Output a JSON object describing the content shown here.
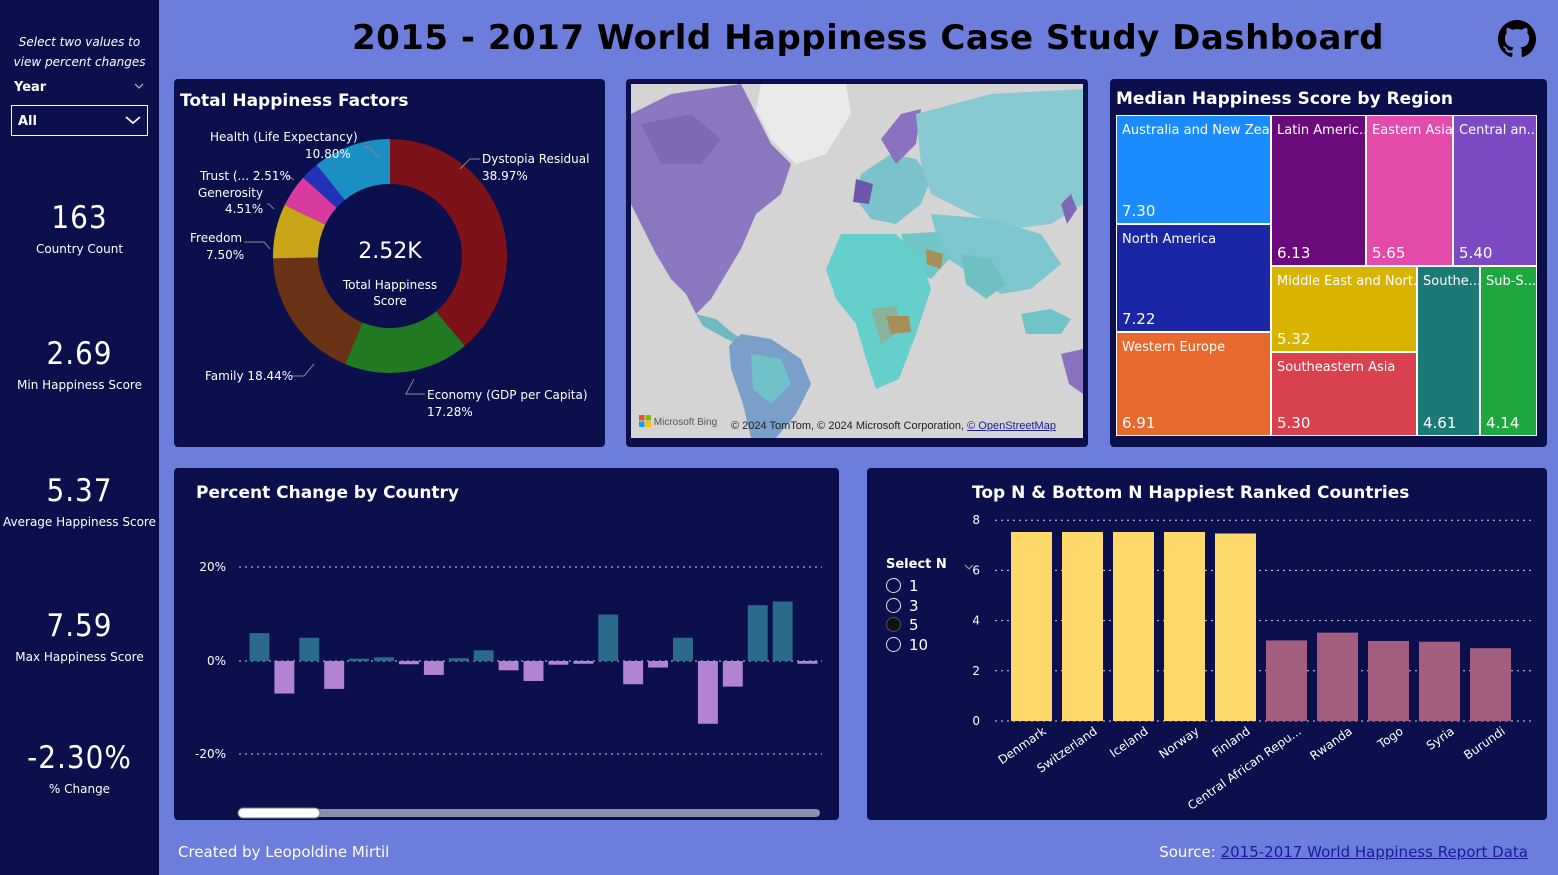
{
  "title": "2015 - 2017 World Happiness Case Study Dashboard",
  "github_icon": "github-icon",
  "sidebar": {
    "note": "Select two values to view percent changes",
    "year_label": "Year",
    "year_value": "All",
    "kpis": [
      {
        "value": "163",
        "label": "Country Count"
      },
      {
        "value": "2.69",
        "label": "Min Happiness Score"
      },
      {
        "value": "5.37",
        "label": "Average Happiness Score"
      },
      {
        "value": "7.59",
        "label": "Max Happiness Score"
      },
      {
        "value": "-2.30%",
        "label": "% Change"
      }
    ]
  },
  "factors": {
    "title": "Total Happiness Factors",
    "center_value": "2.52K",
    "center_label": "Total Happiness Score",
    "labels": {
      "health": "Health (Life Expectancy)",
      "health_pct": "10.80%",
      "trust": "Trust (... 2.51%",
      "generosity": "Generosity",
      "generosity_pct": "4.51%",
      "freedom": "Freedom",
      "freedom_pct": "7.50%",
      "family": "Family 18.44%",
      "dystopia": "Dystopia Residual",
      "dystopia_pct": "38.97%",
      "economy": "Economy (GDP per Capita)",
      "economy_pct": "17.28%"
    }
  },
  "map": {
    "attribution": "© 2024 TomTom, © 2024 Microsoft Corporation,",
    "osm_link": "© OpenStreetMap",
    "logo": "Microsoft Bing"
  },
  "treemap": {
    "title": "Median Happiness Score by Region",
    "tiles": [
      {
        "name": "Australia and New Zeal...",
        "value": "7.30",
        "color": "#1a8cff"
      },
      {
        "name": "North America",
        "value": "7.22",
        "color": "#1a26a6"
      },
      {
        "name": "Western Europe",
        "value": "6.91",
        "color": "#e8692e"
      },
      {
        "name": "Latin Americ...",
        "value": "6.13",
        "color": "#6b0a7a"
      },
      {
        "name": "Eastern Asia",
        "value": "5.65",
        "color": "#e34aaa"
      },
      {
        "name": "Central an...",
        "value": "5.40",
        "color": "#7c4bc4"
      },
      {
        "name": "Middle East and Nort...",
        "value": "5.32",
        "color": "#d8b400"
      },
      {
        "name": "Southeastern Asia",
        "value": "5.30",
        "color": "#d9414f"
      },
      {
        "name": "Southe...",
        "value": "4.61",
        "color": "#1c7a76"
      },
      {
        "name": "Sub-S...",
        "value": "4.14",
        "color": "#1fa73f"
      }
    ]
  },
  "footer": {
    "created_by": "Created by Leopoldine Mirtil",
    "source_label": "Source:",
    "source_link": "2015-2017 World Happiness Report Data"
  },
  "topn": {
    "title": "Top N & Bottom N Happiest Ranked Countries",
    "select_label": "Select N",
    "options": [
      "1",
      "3",
      "5",
      "10"
    ],
    "selected": "5"
  },
  "chart_data": [
    {
      "type": "donut",
      "title": "Total Happiness Factors",
      "categories": [
        "Dystopia Residual",
        "Economy (GDP per Capita)",
        "Family",
        "Freedom",
        "Generosity",
        "Trust",
        "Health (Life Expectancy)"
      ],
      "values": [
        38.97,
        17.28,
        18.44,
        7.5,
        4.51,
        2.51,
        10.8
      ],
      "colors": [
        "#7d1218",
        "#217a21",
        "#6b3316",
        "#c9a618",
        "#d83aa0",
        "#2330b8",
        "#1b8fc2"
      ]
    },
    {
      "type": "bar",
      "title": "Percent Change by Country",
      "ylim": [
        -20,
        20
      ],
      "yticks": [
        "20%",
        "0%",
        "-20%"
      ],
      "values": [
        6,
        -7,
        5,
        -6,
        0.5,
        0.8,
        -0.7,
        -3,
        0.6,
        2.3,
        -2,
        -4.3,
        -0.8,
        -0.6,
        10,
        -5,
        -1.4,
        5,
        -13.5,
        -5.5,
        12,
        12.8,
        -0.6
      ],
      "pos_color": "#2b6a8a",
      "neg_color": "#b283d2"
    },
    {
      "type": "bar",
      "title": "Top N & Bottom N Happiest Ranked Countries",
      "ylim": [
        0,
        8
      ],
      "yticks": [
        "8",
        "6",
        "4",
        "2",
        "0"
      ],
      "categories": [
        "Denmark",
        "Switzerland",
        "Iceland",
        "Norway",
        "Finland",
        "Central African Repu...",
        "Rwanda",
        "Togo",
        "Syria",
        "Burundi"
      ],
      "values": [
        7.53,
        7.53,
        7.53,
        7.53,
        7.47,
        3.21,
        3.52,
        3.19,
        3.16,
        2.9
      ],
      "top_color": "#fcd96a",
      "bottom_color": "#a35e7f"
    }
  ]
}
